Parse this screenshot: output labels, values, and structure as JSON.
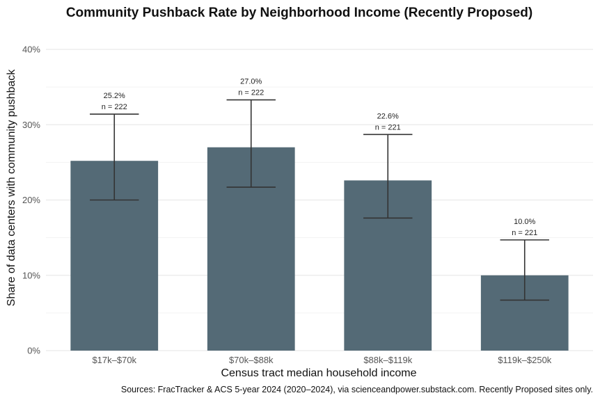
{
  "chart_data": {
    "type": "bar",
    "title": "Community Pushback Rate by Neighborhood Income (Recently Proposed)",
    "xlabel": "Census tract median household income",
    "ylabel": "Share of data centers with community pushback",
    "categories": [
      "$17k–$70k",
      "$70k–$88k",
      "$88k–$119k",
      "$119k–$250k"
    ],
    "values": [
      25.2,
      27.0,
      22.6,
      10.0
    ],
    "error_low": [
      20.0,
      21.7,
      17.6,
      6.7
    ],
    "error_high": [
      31.4,
      33.3,
      28.7,
      14.7
    ],
    "value_labels": [
      "25.2%",
      "27.0%",
      "22.6%",
      "10.0%"
    ],
    "n_labels": [
      "n = 222",
      "n = 222",
      "n = 221",
      "n = 221"
    ],
    "ylim": [
      0,
      40
    ],
    "yticks": [
      0,
      10,
      20,
      30,
      40
    ],
    "ytick_labels": [
      "0%",
      "10%",
      "20%",
      "30%",
      "40%"
    ],
    "grid": true,
    "bar_color": "#546a76",
    "caption": "Sources: FracTracker & ACS 5-year 2024 (2020–2024), via scienceandpower.substack.com. Recently Proposed sites only."
  }
}
